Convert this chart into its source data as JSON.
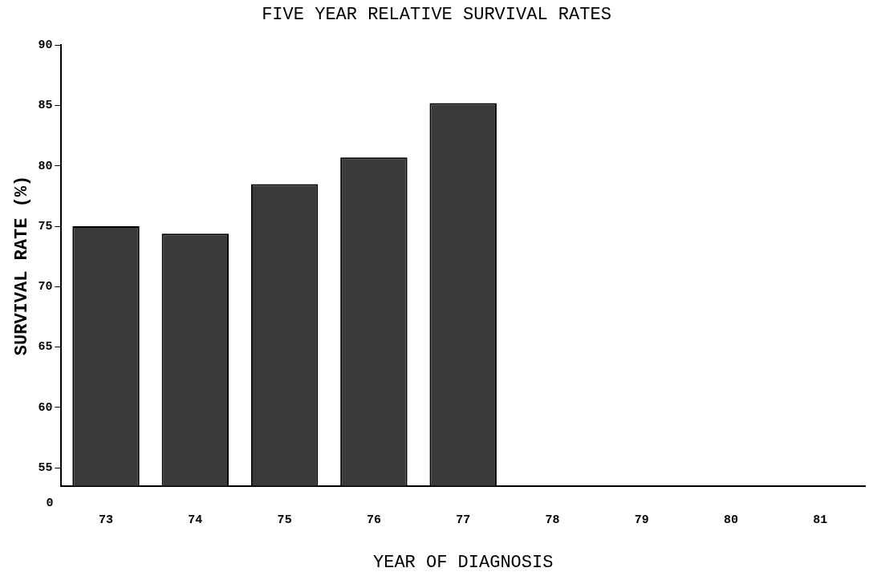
{
  "chart_data": {
    "type": "bar",
    "title": "FIVE YEAR RELATIVE SURVIVAL RATES",
    "xlabel": "YEAR OF DIAGNOSIS",
    "ylabel": "SURVIVAL RATE (%)",
    "categories": [
      "73",
      "74",
      "75",
      "76",
      "77",
      "78",
      "79",
      "80",
      "81"
    ],
    "values": [
      75.0,
      74.4,
      78.5,
      80.7,
      85.2,
      null,
      null,
      null,
      null
    ],
    "color": "#3a3a3a",
    "ylim": [
      53.5,
      90
    ],
    "yticks": [
      55,
      60,
      65,
      70,
      75,
      80,
      85,
      90
    ],
    "grid": false,
    "legend": false,
    "annotations": [
      "0"
    ]
  }
}
